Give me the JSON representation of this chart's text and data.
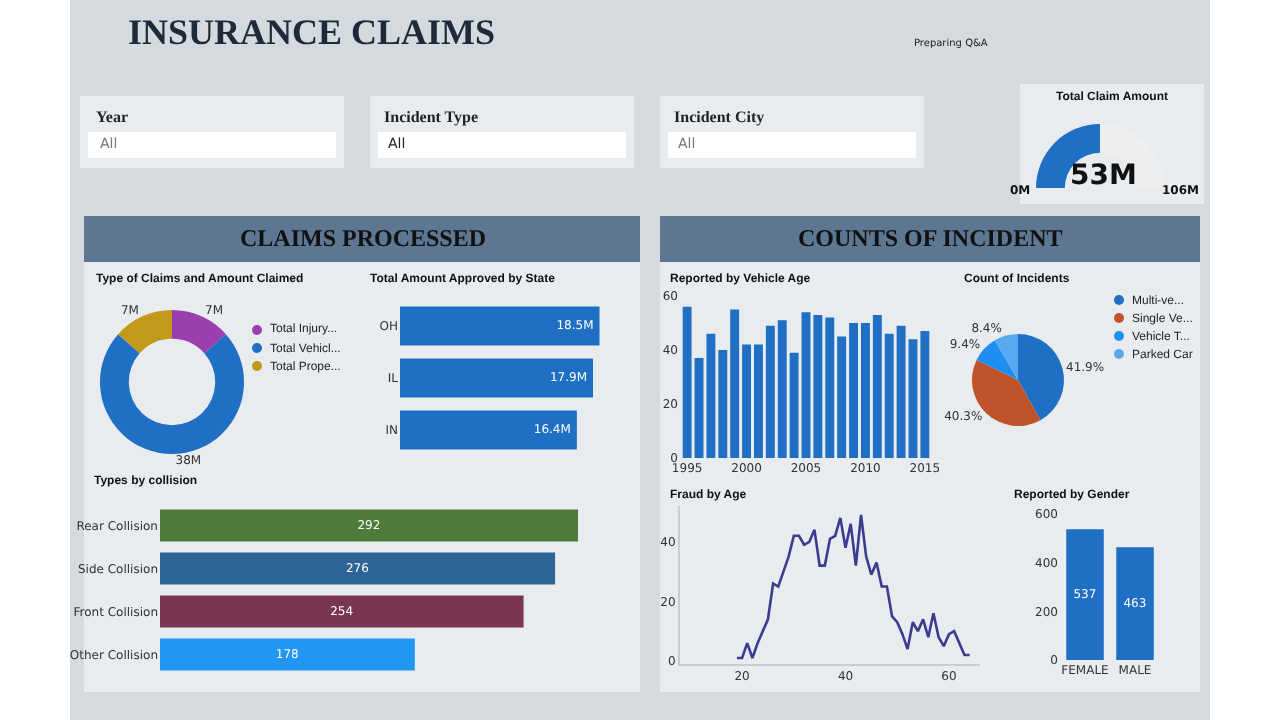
{
  "chart_data": [
    {
      "type": "other",
      "title": "INSURANCE CLAIMS",
      "annotations": [
        "Preparing Q&A",
        "Year",
        "All",
        "Incident Type",
        "All",
        "Incident City",
        "All",
        "CLAIMS PROCESSED",
        "COUNTS OF INCIDENT"
      ]
    },
    {
      "type": "donut",
      "title": "Total Claim Amount",
      "categories": [
        null,
        null
      ],
      "values": [
        50,
        50
      ],
      "colors": [
        "#1f6fc5",
        "#eeeeee"
      ],
      "annotations": [
        "53M",
        "0M",
        "106M"
      ]
    },
    {
      "type": "donut",
      "title": "Type of Claims and Amount Claimed",
      "categories": [
        "Total Injury...",
        "Total Vehicl...",
        "Total Prope..."
      ],
      "values": [
        7,
        38,
        7
      ],
      "value_labels": [
        "7M",
        "38M",
        "7M"
      ],
      "colors": [
        "#9b3fb0",
        "#1f6fc5",
        "#c19a1a"
      ],
      "legend": "right"
    },
    {
      "type": "bar",
      "orientation": "horizontal",
      "title": "Total Amount Approved by State",
      "categories": [
        "OH",
        "IL",
        "IN"
      ],
      "values": [
        18.5,
        17.9,
        16.4
      ],
      "value_labels": [
        "18.5M",
        "17.9M",
        "16.4M"
      ],
      "color": "#1f6fc5",
      "tick_labels": "y"
    },
    {
      "type": "bar",
      "title": "Reported by Vehicle Age",
      "x": [
        1995,
        1996,
        1997,
        1998,
        1999,
        2000,
        2001,
        2002,
        2003,
        2004,
        2005,
        2006,
        2007,
        2008,
        2009,
        2010,
        2011,
        2012,
        2013,
        2014,
        2015
      ],
      "values": [
        56,
        37,
        46,
        40,
        55,
        42,
        42,
        49,
        51,
        39,
        54,
        53,
        52,
        45,
        50,
        50,
        53,
        46,
        49,
        44,
        47
      ],
      "color": "#1f6fc5",
      "xlim": [
        1994.4,
        2015.6
      ],
      "ylim": [
        0,
        60
      ],
      "xticks": [
        1995,
        2000,
        2005,
        2010,
        2015
      ],
      "yticks": [
        0,
        20,
        40,
        60
      ],
      "grid": false
    },
    {
      "type": "pie",
      "title": "Count of Incidents",
      "categories": [
        "Multi-ve...",
        "Single Ve...",
        "Vehicle T...",
        "Parked Car"
      ],
      "values": [
        41.9,
        40.3,
        9.4,
        8.4
      ],
      "value_labels": [
        "41.9%",
        "40.3%",
        "9.4%",
        "8.4%"
      ],
      "colors": [
        "#1f6fc5",
        "#c0522a",
        "#1e8ff0",
        "#5aa9f0"
      ],
      "legend": "right"
    },
    {
      "type": "bar",
      "orientation": "horizontal",
      "title": "Types by collision",
      "categories": [
        "Rear Collision",
        "Side Collision",
        "Front Collision",
        "Other Collision"
      ],
      "values": [
        292,
        276,
        254,
        178
      ],
      "colors": [
        "#4e7a3a",
        "#2f6496",
        "#7a3550",
        "#2196f3"
      ],
      "data_labels": true,
      "tick_labels": "y"
    },
    {
      "type": "line",
      "title": "Fraud by Age",
      "x": [
        19,
        20,
        21,
        22,
        23,
        24,
        25,
        26,
        27,
        28,
        29,
        30,
        31,
        32,
        33,
        34,
        35,
        36,
        37,
        38,
        39,
        40,
        41,
        42,
        43,
        44,
        45,
        46,
        47,
        48,
        49,
        50,
        51,
        52,
        53,
        54,
        55,
        56,
        57,
        58,
        59,
        60,
        61,
        62,
        63,
        64
      ],
      "values": [
        1,
        1,
        6,
        1,
        6,
        10,
        14,
        26,
        25,
        30,
        35,
        42,
        42,
        39,
        40,
        44,
        32,
        32,
        41,
        42,
        48,
        38,
        46,
        32,
        49,
        35,
        29,
        33,
        25,
        25,
        15,
        13,
        9,
        4,
        13,
        10,
        14,
        8,
        16,
        8,
        5,
        9,
        10,
        6,
        2,
        2
      ],
      "color": "#3b3b8f",
      "xlim": [
        8,
        66
      ],
      "ylim": [
        -1,
        52
      ],
      "xticks": [
        20,
        40,
        60
      ],
      "yticks": [
        0,
        20,
        40
      ],
      "grid": false,
      "marker": "none"
    },
    {
      "type": "bar",
      "title": "Reported by Gender",
      "categories": [
        "FEMALE",
        "MALE"
      ],
      "values": [
        537,
        463
      ],
      "color": "#1f6fc5",
      "ylim": [
        0,
        600
      ],
      "yticks": [
        0,
        200,
        400,
        600
      ],
      "data_labels": true,
      "grid": false
    }
  ]
}
